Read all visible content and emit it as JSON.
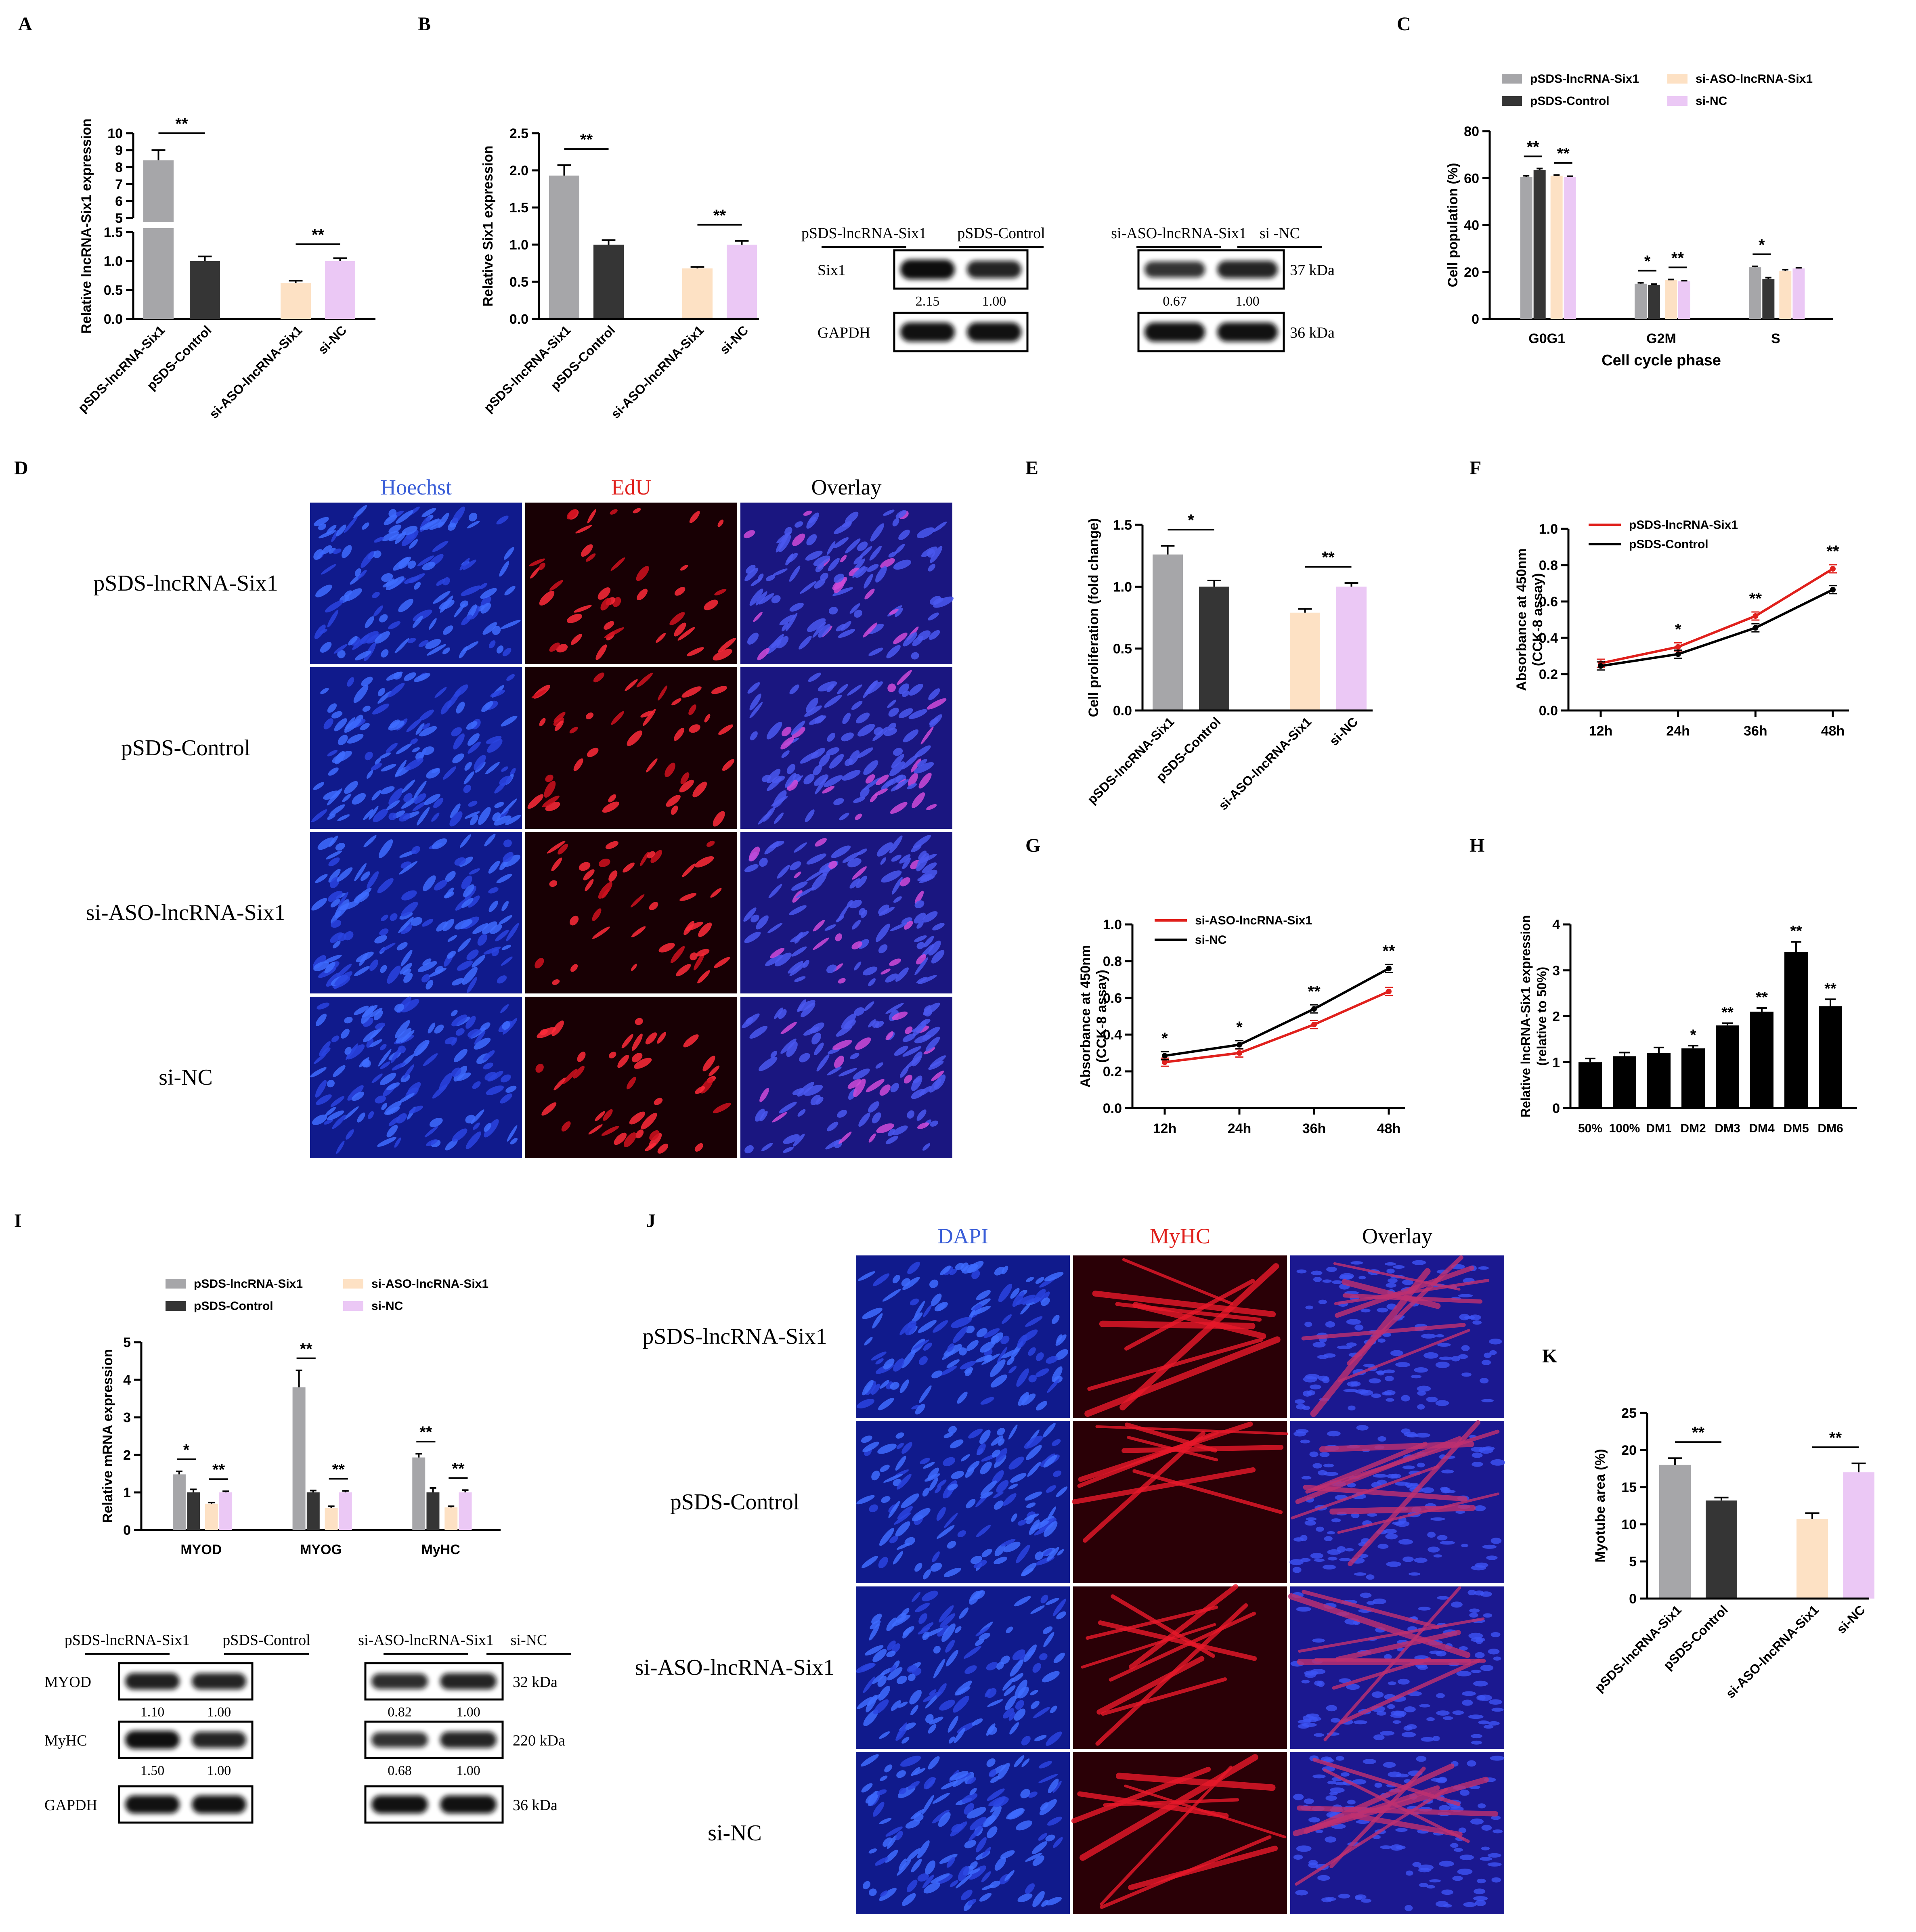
{
  "colors": {
    "gray": "#a6a6a9",
    "dark": "#353535",
    "peach": "#fde1c4",
    "lilac": "#ebc8f5",
    "red": "#e0201c",
    "black": "#000000"
  },
  "panel_letters": [
    "A",
    "B",
    "C",
    "D",
    "E",
    "F",
    "G",
    "H",
    "I",
    "J",
    "K"
  ],
  "panel_d": {
    "channels": [
      "Hoechst",
      "EdU",
      "Overlay"
    ],
    "rows": [
      "pSDS-lncRNA-Six1",
      "pSDS-Control",
      "si-ASO-lncRNA-Six1",
      "si-NC"
    ]
  },
  "panel_j": {
    "channels": [
      "DAPI",
      "MyHC",
      "Overlay"
    ],
    "rows": [
      "pSDS-lncRNA-Six1",
      "pSDS-Control",
      "si-ASO-lncRNA-Six1",
      "si-NC"
    ]
  },
  "blot_b": {
    "groups": [
      "pSDS-lncRNA-Six1",
      "pSDS-Control",
      "si-ASO-lncRNA-Six1",
      "si -NC"
    ],
    "rows": [
      {
        "name": "Six1",
        "kda": "37 kDa",
        "values": [
          "2.15",
          "1.00",
          "0.67",
          "1.00"
        ]
      },
      {
        "name": "GAPDH",
        "kda": "36 kDa",
        "values": [
          "",
          "",
          "",
          ""
        ]
      }
    ]
  },
  "blot_i": {
    "groups": [
      "pSDS-lncRNA-Six1",
      "pSDS-Control",
      "si-ASO-lncRNA-Six1",
      "si-NC"
    ],
    "rows": [
      {
        "name": "MYOD",
        "kda": "32 kDa",
        "values": [
          "1.10",
          "1.00",
          "0.82",
          "1.00"
        ]
      },
      {
        "name": "MyHC",
        "kda": "220 kDa",
        "values": [
          "1.50",
          "1.00",
          "0.68",
          "1.00"
        ]
      },
      {
        "name": "GAPDH",
        "kda": "36 kDa",
        "values": [
          "",
          "",
          "",
          ""
        ]
      }
    ]
  },
  "chart_data": [
    {
      "id": "A",
      "type": "bar",
      "ylabel": "Relative lncRNA-Six1 expression",
      "categories": [
        "pSDS-lncRNA-Six1",
        "pSDS-Control",
        "si-ASO-lncRNA-Six1",
        "si-NC"
      ],
      "values": [
        8.4,
        1.0,
        0.62,
        1.0
      ],
      "errors": [
        0.6,
        0.08,
        0.04,
        0.05
      ],
      "broken_axis": {
        "lower": [
          0,
          1.5
        ],
        "upper": [
          5,
          10
        ]
      },
      "yticks_lower": [
        "0.0",
        "0.5",
        "1.0",
        "1.5"
      ],
      "yticks_upper": [
        "5",
        "6",
        "7",
        "8",
        "9",
        "10"
      ],
      "significance": [
        "**",
        "**"
      ]
    },
    {
      "id": "B",
      "type": "bar",
      "ylabel": "Relative Six1 expression",
      "categories": [
        "pSDS-lncRNA-Six1",
        "pSDS-Control",
        "si-ASO-lncRNA-Six1",
        "si-NC"
      ],
      "values": [
        1.93,
        1.0,
        0.68,
        1.0
      ],
      "errors": [
        0.14,
        0.06,
        0.02,
        0.05
      ],
      "ylim": [
        0,
        2.5
      ],
      "yticks": [
        "0.0",
        "0.5",
        "1.0",
        "1.5",
        "2.0",
        "2.5"
      ],
      "significance": [
        "**",
        "**"
      ]
    },
    {
      "id": "C",
      "type": "bar",
      "xlabel": "Cell cycle phase",
      "ylabel": "Cell population (%)",
      "categories": [
        "G0G1",
        "G2M",
        "S"
      ],
      "series": [
        {
          "name": "pSDS-lncRNA-Six1",
          "values": [
            60.5,
            15,
            22
          ],
          "errors": [
            0.5,
            0.4,
            0.4
          ]
        },
        {
          "name": "pSDS-Control",
          "values": [
            63.5,
            14.5,
            17
          ],
          "errors": [
            0.6,
            0.3,
            0.6
          ]
        },
        {
          "name": "si-ASO-lncRNA-Six1",
          "values": [
            61,
            16.5,
            20.5
          ],
          "errors": [
            0.3,
            0.3,
            0.5
          ]
        },
        {
          "name": "si-NC",
          "values": [
            60.5,
            16,
            21.5
          ],
          "errors": [
            0.3,
            0.3,
            0.3
          ]
        }
      ],
      "ylim": [
        0,
        80
      ],
      "yticks": [
        "0",
        "20",
        "40",
        "60",
        "80"
      ],
      "significance": [
        "**",
        "**",
        "*",
        "**",
        "*"
      ],
      "legend": "top"
    },
    {
      "id": "E",
      "type": "bar",
      "ylabel": "Cell proliferation (fold change)",
      "categories": [
        "pSDS-lncRNA-Six1",
        "pSDS-Control",
        "si-ASO-lncRNA-Six1",
        "si-NC"
      ],
      "values": [
        1.26,
        1.0,
        0.79,
        1.0
      ],
      "errors": [
        0.07,
        0.05,
        0.03,
        0.03
      ],
      "ylim": [
        0,
        1.5
      ],
      "yticks": [
        "0.0",
        "0.5",
        "1.0",
        "1.5"
      ],
      "significance": [
        "*",
        "**"
      ]
    },
    {
      "id": "F",
      "type": "line",
      "ylabel": "Absorbance at 450nm",
      "ylabel2": "(CCK-8 assay)",
      "categories": [
        "12h",
        "24h",
        "36h",
        "48h"
      ],
      "series": [
        {
          "name": "pSDS-lncRNA-Six1",
          "color": "red",
          "values": [
            0.26,
            0.35,
            0.52,
            0.78
          ]
        },
        {
          "name": "pSDS-Control",
          "color": "black",
          "values": [
            0.245,
            0.31,
            0.455,
            0.665
          ]
        }
      ],
      "ylim": [
        0,
        1.0
      ],
      "yticks": [
        "0.0",
        "0.2",
        "0.4",
        "0.6",
        "0.8",
        "1.0"
      ],
      "significance": [
        "",
        "*",
        "**",
        "**"
      ]
    },
    {
      "id": "G",
      "type": "line",
      "ylabel": "Absorbance at 450nm",
      "ylabel2": "(CCK-8 assay)",
      "categories": [
        "12h",
        "24h",
        "36h",
        "48h"
      ],
      "series": [
        {
          "name": "si-ASO-lncRNA-Six1",
          "color": "red",
          "values": [
            0.25,
            0.3,
            0.455,
            0.635
          ]
        },
        {
          "name": "si-NC",
          "color": "black",
          "values": [
            0.285,
            0.345,
            0.54,
            0.76
          ]
        }
      ],
      "ylim": [
        0,
        1.0
      ],
      "yticks": [
        "0.0",
        "0.2",
        "0.4",
        "0.6",
        "0.8",
        "1.0"
      ],
      "significance": [
        "*",
        "*",
        "**",
        "**"
      ]
    },
    {
      "id": "H",
      "type": "bar",
      "ylabel": "Relative lncRNA-Six1 expression",
      "ylabel2": "(relative to 50%)",
      "categories": [
        "50%",
        "100%",
        "DM1",
        "DM2",
        "DM3",
        "DM4",
        "DM5",
        "DM6"
      ],
      "values": [
        1.0,
        1.13,
        1.2,
        1.3,
        1.8,
        2.1,
        3.4,
        2.22
      ],
      "errors": [
        0.08,
        0.08,
        0.12,
        0.06,
        0.05,
        0.08,
        0.22,
        0.15
      ],
      "ylim": [
        0,
        4
      ],
      "yticks": [
        "0",
        "1",
        "2",
        "3",
        "4"
      ],
      "significance": [
        "",
        "",
        "",
        "*",
        "**",
        "**",
        "**",
        "**"
      ]
    },
    {
      "id": "I",
      "type": "bar",
      "ylabel": "Relative  mRNA expression",
      "categories": [
        "MYOD",
        "MYOG",
        "MyHC"
      ],
      "series": [
        {
          "name": "pSDS-lncRNA-Six1",
          "values": [
            1.48,
            3.8,
            1.93
          ],
          "errors": [
            0.08,
            0.45,
            0.1
          ]
        },
        {
          "name": "pSDS-Control",
          "values": [
            1.0,
            1.0,
            1.0
          ],
          "errors": [
            0.08,
            0.05,
            0.12
          ]
        },
        {
          "name": "si-ASO-lncRNA-Six1",
          "values": [
            0.7,
            0.58,
            0.6
          ],
          "errors": [
            0.03,
            0.05,
            0.03
          ]
        },
        {
          "name": "si-NC",
          "values": [
            1.0,
            1.0,
            1.0
          ],
          "errors": [
            0.03,
            0.04,
            0.06
          ]
        }
      ],
      "ylim": [
        0,
        5
      ],
      "yticks": [
        "0",
        "1",
        "2",
        "3",
        "4",
        "5"
      ],
      "significance": [
        "*",
        "**",
        "**",
        "**",
        "**",
        "**"
      ],
      "legend": "top"
    },
    {
      "id": "K",
      "type": "bar",
      "ylabel": "Myotube area (%)",
      "categories": [
        "pSDS-lncRNA-Six1",
        "pSDS-Control",
        "si-ASO-lncRNA-Six1",
        "si-NC"
      ],
      "values": [
        18.0,
        13.2,
        10.7,
        17.0
      ],
      "errors": [
        0.9,
        0.4,
        0.8,
        1.2
      ],
      "ylim": [
        0,
        25
      ],
      "yticks": [
        "0",
        "5",
        "10",
        "15",
        "20",
        "25"
      ],
      "significance": [
        "**",
        "**"
      ]
    }
  ]
}
